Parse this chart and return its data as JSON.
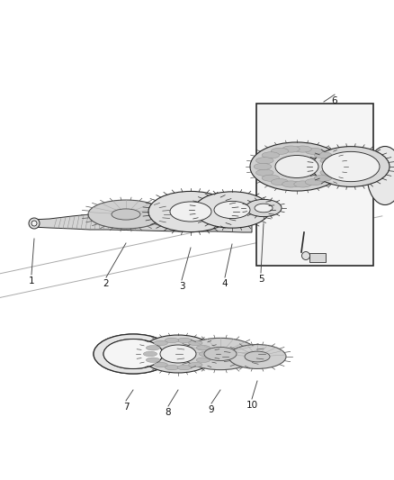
{
  "background_color": "#ffffff",
  "line_color": "#2a2a2a",
  "light_gray": "#cccccc",
  "mid_gray": "#999999",
  "dark_gray": "#666666",
  "fill_light": "#e8e8e8",
  "fill_mid": "#d0d0d0",
  "fill_dark": "#b0b0b0",
  "fig_width": 4.38,
  "fig_height": 5.33,
  "dpi": 100,
  "label_fontsize": 7.5
}
